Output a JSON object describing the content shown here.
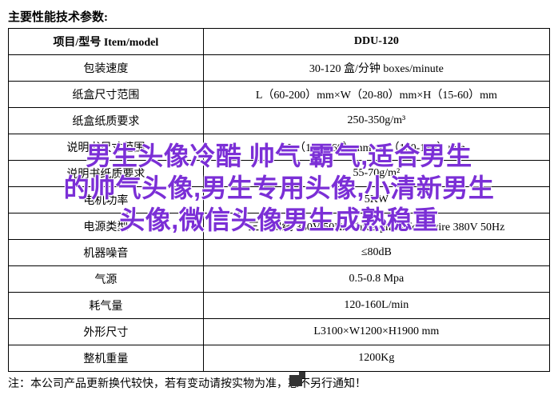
{
  "heading": "主要性能技术参数:",
  "table": {
    "header": {
      "col1": "项目/型号 Item/model",
      "col2": "DDU-120"
    },
    "rows": [
      {
        "label": "包装速度",
        "value": "30-120 盒/分钟 boxes/minute"
      },
      {
        "label": "纸盒尺寸范围",
        "value": "L（60-200）mm×W（20-80）mm×H（15-60）mm"
      },
      {
        "label": "纸盒纸质要求",
        "value": "250-350g/m³"
      },
      {
        "label": "说明书尺寸范围",
        "value": "L（100-260）mm×W（100-190）mm"
      },
      {
        "label": "说明书纸质要求",
        "value": "55-70g/m²"
      },
      {
        "label": "电机功率",
        "value": "5KW"
      },
      {
        "label": "电源类型",
        "value": "三相四线 380V 50Hz Three-phase four-wire 380V 50Hz"
      },
      {
        "label": "机器噪音",
        "value": "≤80dB"
      },
      {
        "label": "气源",
        "value": "0.5-0.8 Mpa"
      },
      {
        "label": "耗气量",
        "value": "120-160L/min"
      },
      {
        "label": "外形尺寸",
        "value": "L3100×W1200×H1900 mm"
      },
      {
        "label": "整机重量",
        "value": "1200Kg"
      }
    ]
  },
  "footnote": "注：本公司产品更新换代较快，若有变动请按实物为准，恕不另行通知！",
  "overlay": {
    "line1": "男生头像冷酷 帅气 霸气,适合男生",
    "line2": "的帅气头像,男生专用头像,小清新男生",
    "line3": "头像,微信头像男生成熟稳重",
    "color": "#7b2fd6",
    "outline_color": "#ffffff",
    "font_size": 32
  }
}
